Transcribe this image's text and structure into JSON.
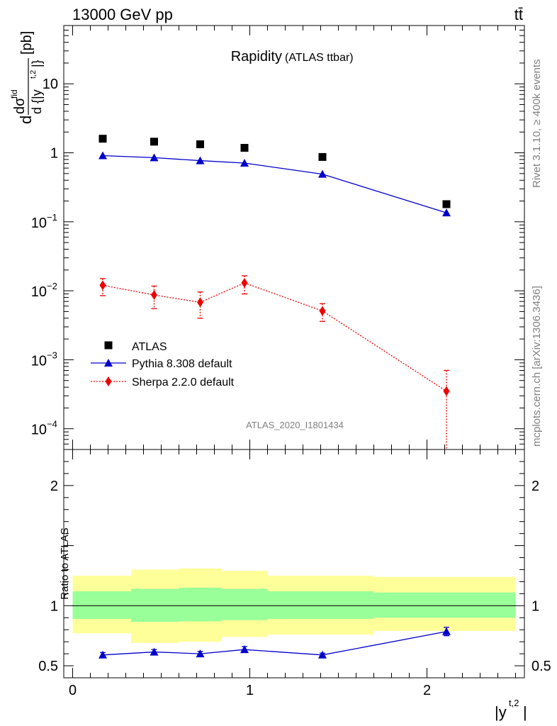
{
  "header": {
    "energy_label": "13000 GeV pp",
    "process_label": "tt̄"
  },
  "side": {
    "rivet": "Rivet 3.1.10, ≥ 400k events",
    "mcplots": "mcplots.cern.ch [arXiv:1306.3436]"
  },
  "chart_data": [
    {
      "type": "scatter",
      "title": "Rapidity",
      "subtitle": "(ATLAS ttbar)",
      "ylabel_prefix": "d",
      "ylabel_num": "dσ",
      "ylabel_sup": "fid",
      "ylabel_den": "d {|y",
      "ylabel_den_sup": "t,2",
      "ylabel_den_close": "|}",
      "ylabel_unit": "[pb]",
      "y_scale": "log",
      "ylim": [
        5e-05,
        70
      ],
      "xlim": [
        -0.05,
        2.55
      ],
      "y_tick_labels": [
        {
          "value": 10,
          "label": "10"
        },
        {
          "value": 1,
          "label": "1"
        },
        {
          "value": 0.1,
          "base": "10",
          "exp": "−1"
        },
        {
          "value": 0.01,
          "base": "10",
          "exp": "−2"
        },
        {
          "value": 0.001,
          "base": "10",
          "exp": "−3"
        },
        {
          "value": 0.0001,
          "base": "10",
          "exp": "−4"
        }
      ],
      "watermark": "ATLAS_2020_I1801434",
      "legend_position": "bottom-left",
      "series": [
        {
          "name": "ATLAS",
          "style": "data",
          "color": "#000000",
          "marker": "square",
          "x": [
            0.17,
            0.46,
            0.72,
            0.97,
            1.41,
            2.11
          ],
          "y": [
            1.6,
            1.45,
            1.33,
            1.18,
            0.87,
            0.18
          ]
        },
        {
          "name": "Pythia 8.308 default",
          "style": "line",
          "color": "#0000cc",
          "marker": "triangle",
          "x": [
            0.17,
            0.46,
            0.72,
            0.97,
            1.41,
            2.11
          ],
          "y": [
            0.91,
            0.85,
            0.77,
            0.71,
            0.49,
            0.135
          ],
          "err_up": [
            0.0,
            0.0,
            0.0,
            0.0,
            0.0,
            0.0
          ],
          "err_down": [
            0.0,
            0.0,
            0.0,
            0.0,
            0.0,
            0.0
          ]
        },
        {
          "name": "Sherpa 2.2.0 default",
          "style": "dotted",
          "color": "#ee0000",
          "marker": "diamond",
          "x": [
            0.17,
            0.46,
            0.72,
            0.97,
            1.41,
            2.11
          ],
          "y": [
            0.012,
            0.0087,
            0.0068,
            0.013,
            0.0051,
            0.00035
          ],
          "err_up": [
            0.003,
            0.003,
            0.0028,
            0.0035,
            0.0014,
            0.00035
          ],
          "err_down": [
            0.0035,
            0.0032,
            0.0028,
            0.004,
            0.0015,
            0.00035
          ]
        }
      ]
    },
    {
      "type": "scatter",
      "ylabel": "Ratio to ATLAS",
      "xlabel": "|y",
      "xlabel_sup": "t,2",
      "xlabel_close": "|",
      "ylim": [
        0.4,
        2.3
      ],
      "xlim": [
        -0.05,
        2.55
      ],
      "x_ticks": [
        0,
        1,
        2
      ],
      "x_tick_labels": [
        "0",
        "1",
        "2"
      ],
      "y_ticks": [
        0.5,
        1,
        2
      ],
      "y_tick_labels": [
        "0.5",
        "1",
        "2"
      ],
      "bands": [
        {
          "x0": 0.0,
          "x1": 0.33,
          "inner": [
            0.89,
            1.12
          ],
          "outer": [
            0.77,
            1.25
          ]
        },
        {
          "x0": 0.33,
          "x1": 0.6,
          "inner": [
            0.865,
            1.14
          ],
          "outer": [
            0.69,
            1.3
          ]
        },
        {
          "x0": 0.6,
          "x1": 0.84,
          "inner": [
            0.87,
            1.15
          ],
          "outer": [
            0.7,
            1.31
          ]
        },
        {
          "x0": 0.84,
          "x1": 1.1,
          "inner": [
            0.88,
            1.14
          ],
          "outer": [
            0.74,
            1.29
          ]
        },
        {
          "x0": 1.1,
          "x1": 1.7,
          "inner": [
            0.89,
            1.12
          ],
          "outer": [
            0.76,
            1.25
          ]
        },
        {
          "x0": 1.7,
          "x1": 2.5,
          "inner": [
            0.9,
            1.11
          ],
          "outer": [
            0.79,
            1.24
          ]
        }
      ],
      "band_colors": {
        "inner": "#99ff99",
        "outer": "#ffff99"
      },
      "series": [
        {
          "name": "Pythia 8.308 default",
          "color": "#0000cc",
          "x": [
            0.17,
            0.46,
            0.72,
            0.97,
            1.41,
            2.11
          ],
          "y": [
            0.59,
            0.615,
            0.6,
            0.635,
            0.59,
            0.785
          ],
          "err": [
            0.02,
            0.02,
            0.02,
            0.025,
            0.015,
            0.035
          ]
        }
      ]
    }
  ]
}
